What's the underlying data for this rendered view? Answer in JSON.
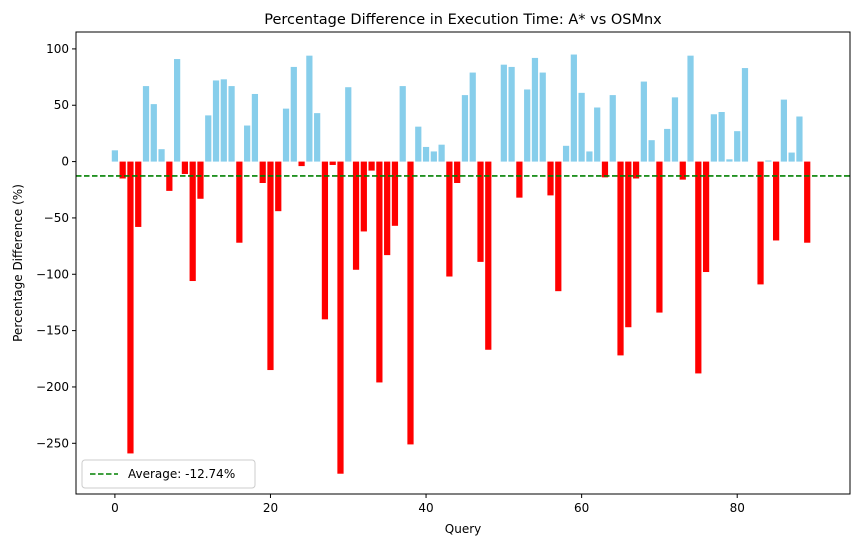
{
  "chart_data": {
    "type": "bar",
    "title": "Percentage Difference in Execution Time: A* vs OSMnx",
    "xlabel": "Query",
    "ylabel": "Percentage Difference (%)",
    "xlim": [
      -5,
      94.5
    ],
    "ylim": [
      -295,
      115
    ],
    "xticks": [
      0,
      20,
      40,
      60,
      80
    ],
    "yticks": [
      -250,
      -200,
      -150,
      -100,
      -50,
      0,
      50,
      100
    ],
    "grid": false,
    "legend_position": "bottom-left",
    "colors": {
      "positive": "#87ceeb",
      "negative": "#ff0000",
      "average_line": "#008000"
    },
    "average": {
      "value": -12.74,
      "label": "Average: -12.74%"
    },
    "x": [
      0,
      1,
      2,
      3,
      4,
      5,
      6,
      7,
      8,
      9,
      10,
      11,
      12,
      13,
      14,
      15,
      16,
      17,
      18,
      19,
      20,
      21,
      22,
      23,
      24,
      25,
      26,
      27,
      28,
      29,
      30,
      31,
      32,
      33,
      34,
      35,
      36,
      37,
      38,
      39,
      40,
      41,
      42,
      43,
      44,
      45,
      46,
      47,
      48,
      49,
      50,
      51,
      52,
      53,
      54,
      55,
      56,
      57,
      58,
      59,
      60,
      61,
      62,
      63,
      64,
      65,
      66,
      67,
      68,
      69,
      70,
      71,
      72,
      73,
      74,
      75,
      76,
      77,
      78,
      79,
      80,
      81,
      82,
      83,
      84,
      85,
      86,
      87,
      88,
      89
    ],
    "values": [
      10,
      -15,
      -259,
      -58,
      67,
      51,
      11,
      -26,
      91,
      -11,
      -106,
      -33,
      41,
      72,
      73,
      67,
      -72,
      32,
      60,
      -19,
      -185,
      -44,
      47,
      84,
      -4,
      94,
      43,
      -140,
      -3,
      -277,
      66,
      -96,
      -62,
      -8,
      -196,
      -83,
      -57,
      67,
      -251,
      31,
      13,
      9,
      15,
      -102,
      -19,
      59,
      79,
      -89,
      -167,
      0,
      86,
      84,
      -32,
      64,
      92,
      79,
      -30,
      -115,
      14,
      95,
      61,
      9,
      48,
      -14,
      59,
      -172,
      -147,
      -15,
      71,
      19,
      -134,
      29,
      57,
      -16,
      94,
      -188,
      -98,
      42,
      44,
      2,
      27,
      83,
      0,
      -109,
      1,
      -70,
      55,
      8,
      40,
      -72
    ]
  }
}
